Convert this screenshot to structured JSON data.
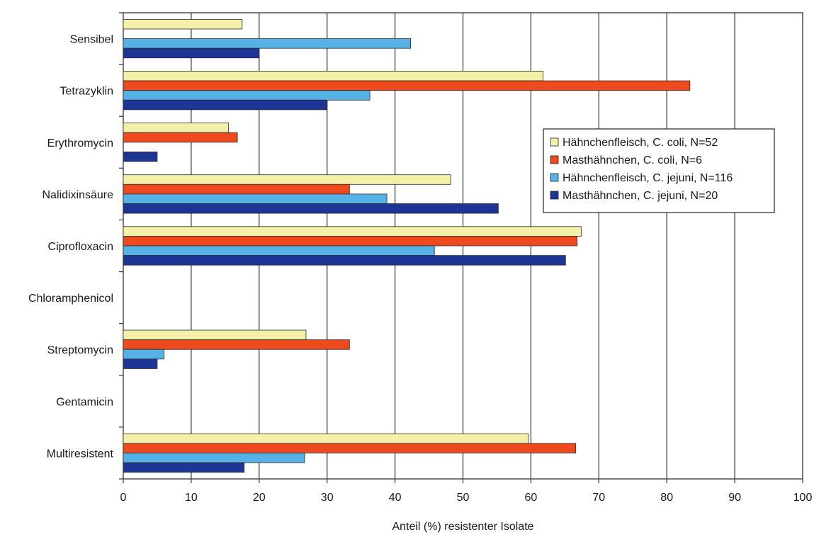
{
  "chart_data": {
    "type": "bar",
    "orientation": "horizontal",
    "title": "",
    "xlabel": "Anteil (%) resistenter Isolate",
    "ylabel": "",
    "xlim": [
      0,
      100
    ],
    "xticks": [
      0,
      10,
      20,
      30,
      40,
      50,
      60,
      70,
      80,
      90,
      100
    ],
    "grid": "vertical",
    "legend_position": "right",
    "categories": [
      "Sensibel",
      "Tetrazyklin",
      "Erythromycin",
      "Nalidixinsäure",
      "Ciprofloxacin",
      "Chloramphenicol",
      "Streptomycin",
      "Gentamicin",
      "Multiresistent"
    ],
    "series": [
      {
        "name": "Hähnchenfleisch, C. coli, N=52",
        "color": "#f5f0a8",
        "values": [
          17.5,
          61.8,
          15.5,
          48.2,
          67.4,
          0,
          26.9,
          0,
          59.6
        ]
      },
      {
        "name": "Masthähnchen, C. coli, N=6",
        "color": "#ee4a1e",
        "values": [
          0,
          83.4,
          16.8,
          33.3,
          66.8,
          0,
          33.3,
          0,
          66.6
        ]
      },
      {
        "name": "Hähnchenfleisch, C. jejuni, N=116",
        "color": "#55b1e6",
        "values": [
          42.3,
          36.3,
          0,
          38.8,
          45.8,
          0,
          6.0,
          0,
          26.7
        ]
      },
      {
        "name": "Masthähnchen, C. jejuni, N=20",
        "color": "#1d3595",
        "values": [
          20.0,
          30.0,
          5.0,
          55.2,
          65.1,
          0,
          5.0,
          0,
          17.8
        ]
      }
    ]
  }
}
